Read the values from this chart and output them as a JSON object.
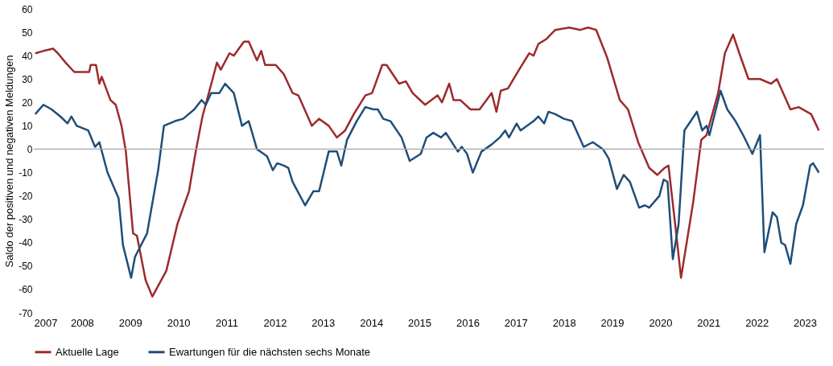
{
  "chart_data": {
    "type": "line",
    "ylabel": "Saldo der positiven und negativen Meldungen",
    "xlim": [
      2007,
      2023.4
    ],
    "xticks": [
      2007,
      2008,
      2009,
      2010,
      2011,
      2012,
      2013,
      2014,
      2015,
      2016,
      2017,
      2018,
      2019,
      2020,
      2021,
      2022,
      2023
    ],
    "ylim": [
      -70,
      60
    ],
    "yticks": [
      -70,
      -60,
      -50,
      -40,
      -30,
      -20,
      -10,
      0,
      10,
      20,
      30,
      40,
      50,
      60
    ],
    "grid": false,
    "legend": "bottom",
    "marker": "none",
    "line_style": "solid",
    "ref_lines": [
      {
        "axis": "y",
        "value": 0,
        "label": null,
        "color": "#a6a6a6"
      }
    ],
    "series": [
      {
        "name": "Aktuelle Lage",
        "color": "#9e2a2b",
        "x": [
          2007.03,
          2007.2,
          2007.4,
          2007.5,
          2007.66,
          2007.84,
          2007.98,
          2008.15,
          2008.18,
          2008.29,
          2008.36,
          2008.41,
          2008.59,
          2008.7,
          2008.82,
          2008.91,
          2009.06,
          2009.14,
          2009.32,
          2009.46,
          2009.75,
          2009.98,
          2010.1,
          2010.22,
          2010.36,
          2010.5,
          2010.71,
          2010.8,
          2010.88,
          2011.06,
          2011.15,
          2011.36,
          2011.46,
          2011.63,
          2011.72,
          2011.8,
          2012.02,
          2012.19,
          2012.37,
          2012.49,
          2012.77,
          2012.92,
          2013.12,
          2013.29,
          2013.46,
          2013.64,
          2013.88,
          2014.02,
          2014.23,
          2014.32,
          2014.58,
          2014.72,
          2014.86,
          2015.12,
          2015.38,
          2015.47,
          2015.62,
          2015.71,
          2015.85,
          2016.06,
          2016.25,
          2016.5,
          2016.6,
          2016.69,
          2016.84,
          2017.07,
          2017.28,
          2017.37,
          2017.47,
          2017.63,
          2017.82,
          2018.11,
          2018.34,
          2018.5,
          2018.67,
          2018.9,
          2019.16,
          2019.33,
          2019.54,
          2019.77,
          2019.94,
          2020.09,
          2020.17,
          2020.33,
          2020.43,
          2020.68,
          2020.85,
          2020.96,
          2021.2,
          2021.34,
          2021.51,
          2021.64,
          2021.83,
          2022.07,
          2022.3,
          2022.42,
          2022.7,
          2022.87,
          2023.13,
          2023.29
        ],
        "values": [
          41,
          42,
          43,
          41,
          37,
          33,
          33,
          33,
          36,
          36,
          28,
          31,
          21,
          19,
          10,
          -1,
          -36,
          -37,
          -56,
          -63,
          -52,
          -32,
          -25,
          -18,
          -1,
          14,
          30,
          37,
          34,
          41,
          40,
          46,
          46,
          38,
          42,
          36,
          36,
          32,
          24,
          23,
          10,
          13,
          10,
          5,
          8,
          15,
          23,
          24,
          36,
          36,
          28,
          29,
          24,
          19,
          23,
          20,
          28,
          21,
          21,
          17,
          17,
          24,
          16,
          25,
          26,
          34,
          41,
          40,
          45,
          47,
          51,
          52,
          51,
          52,
          51,
          39,
          21,
          17,
          3,
          -8,
          -11,
          -8,
          -7,
          -36,
          -55,
          -23,
          4,
          6,
          24,
          41,
          49,
          41,
          30,
          30,
          28,
          30,
          17,
          18,
          15,
          8
        ]
      },
      {
        "name": "Ewartungen für die nächsten sechs Monate",
        "color": "#1f4e79",
        "x": [
          2007.03,
          2007.2,
          2007.37,
          2007.55,
          2007.7,
          2007.78,
          2007.89,
          2008.13,
          2008.27,
          2008.36,
          2008.53,
          2008.76,
          2008.85,
          2009.02,
          2009.1,
          2009.35,
          2009.58,
          2009.7,
          2009.93,
          2010.1,
          2010.33,
          2010.48,
          2010.57,
          2010.68,
          2010.85,
          2010.97,
          2011.15,
          2011.32,
          2011.46,
          2011.63,
          2011.84,
          2011.96,
          2012.05,
          2012.19,
          2012.28,
          2012.37,
          2012.63,
          2012.8,
          2012.92,
          2013.12,
          2013.29,
          2013.38,
          2013.5,
          2013.7,
          2013.88,
          2014.05,
          2014.14,
          2014.25,
          2014.4,
          2014.63,
          2014.8,
          2015.03,
          2015.15,
          2015.29,
          2015.45,
          2015.55,
          2015.8,
          2015.88,
          2015.99,
          2016.11,
          2016.29,
          2016.5,
          2016.67,
          2016.78,
          2016.86,
          2017.02,
          2017.1,
          2017.37,
          2017.47,
          2017.59,
          2017.68,
          2017.82,
          2018.0,
          2018.17,
          2018.41,
          2018.6,
          2018.81,
          2018.93,
          2019.1,
          2019.24,
          2019.37,
          2019.56,
          2019.68,
          2019.77,
          2019.98,
          2020.07,
          2020.15,
          2020.26,
          2020.38,
          2020.5,
          2020.76,
          2020.87,
          2020.96,
          2021.02,
          2021.25,
          2021.39,
          2021.56,
          2021.72,
          2021.91,
          2022.07,
          2022.16,
          2022.33,
          2022.42,
          2022.51,
          2022.59,
          2022.7,
          2022.82,
          2022.96,
          2023.11,
          2023.17,
          2023.29
        ],
        "values": [
          15,
          19,
          17,
          14,
          11,
          14,
          10,
          8,
          1,
          3,
          -10,
          -21,
          -41,
          -55,
          -46,
          -36,
          -9,
          10,
          12,
          13,
          17,
          21,
          19,
          24,
          24,
          28,
          24,
          10,
          12,
          0,
          -3,
          -9,
          -6,
          -7,
          -8,
          -14,
          -24,
          -18,
          -18,
          -1,
          -1,
          -7,
          4,
          12,
          18,
          17,
          17,
          13,
          12,
          5,
          -5,
          -2,
          5,
          7,
          5,
          7,
          -1,
          1,
          -2,
          -10,
          -1,
          2,
          5,
          8,
          5,
          11,
          8,
          12,
          14,
          11,
          16,
          15,
          13,
          12,
          1,
          3,
          0,
          -4,
          -17,
          -11,
          -14,
          -25,
          -24,
          -25,
          -20,
          -13,
          -14,
          -47,
          -32,
          8,
          16,
          8,
          10,
          6,
          25,
          17,
          12,
          6,
          -2,
          6,
          -44,
          -27,
          -29,
          -40,
          -41,
          -49,
          -32,
          -24,
          -7,
          -6,
          -10
        ]
      }
    ]
  }
}
